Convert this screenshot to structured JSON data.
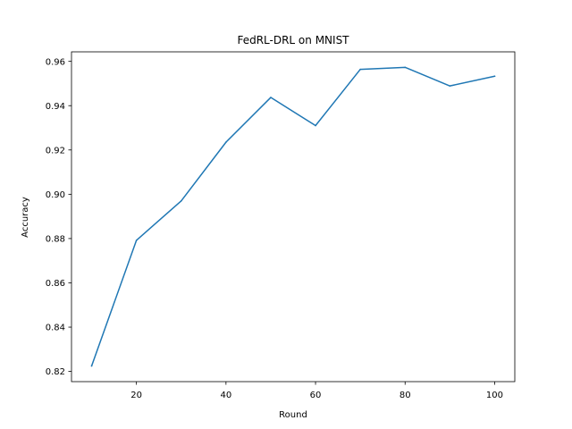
{
  "chart_data": {
    "type": "line",
    "title": "FedRL-DRL on MNIST",
    "xlabel": "Round",
    "ylabel": "Accuracy",
    "xlim": [
      5.5,
      104.5
    ],
    "ylim": [
      0.8154,
      0.9643
    ],
    "xticks": [
      20,
      40,
      60,
      80,
      100
    ],
    "xtick_labels": [
      "20",
      "40",
      "60",
      "80",
      "100"
    ],
    "yticks": [
      0.82,
      0.84,
      0.86,
      0.88,
      0.9,
      0.92,
      0.94,
      0.96
    ],
    "ytick_labels": [
      "0.82",
      "0.84",
      "0.86",
      "0.88",
      "0.90",
      "0.92",
      "0.94",
      "0.96"
    ],
    "grid": false,
    "series": [
      {
        "color": "#1f77b4",
        "x": [
          10,
          20,
          30,
          40,
          50,
          60,
          70,
          80,
          90,
          100
        ],
        "y": [
          0.8225,
          0.8792,
          0.897,
          0.9235,
          0.9437,
          0.931,
          0.9564,
          0.9573,
          0.9489,
          0.9533
        ]
      }
    ]
  }
}
